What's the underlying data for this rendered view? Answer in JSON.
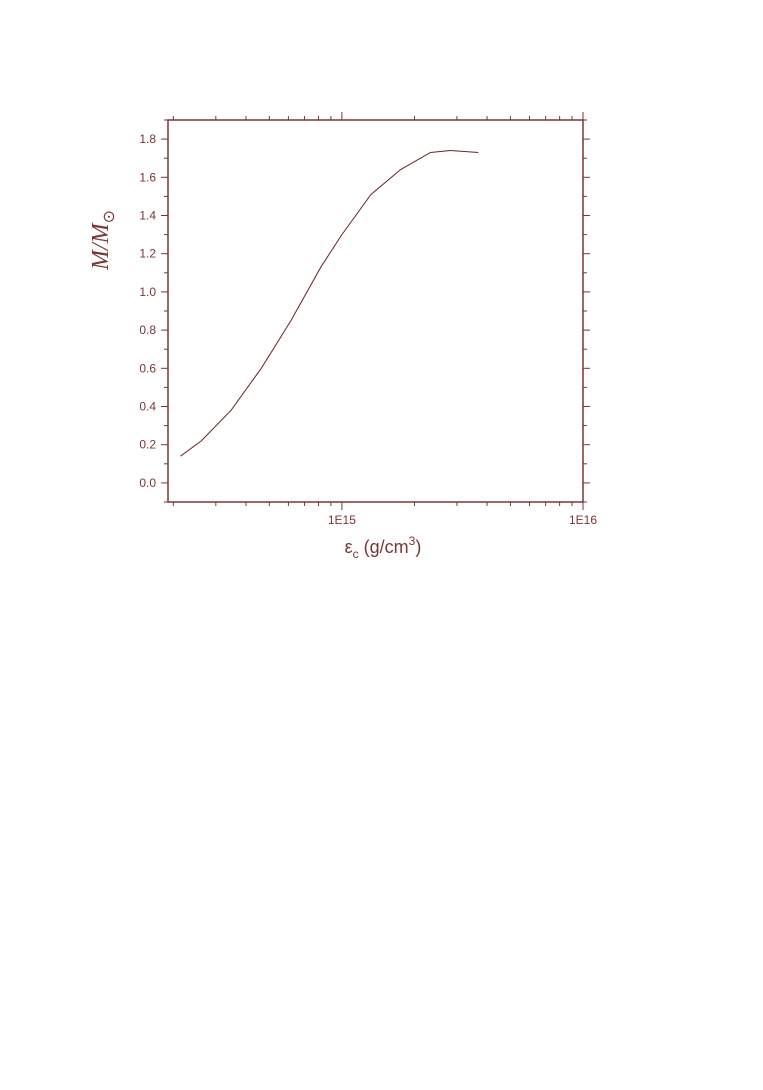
{
  "chart_data": {
    "type": "line",
    "log_x": true,
    "x_label": [
      "ε",
      "c",
      " (g/cm",
      "3",
      ")"
    ],
    "y_label": [
      "M/M",
      "⊙"
    ],
    "x": [
      214000000000000.0,
      261000000000000.0,
      347000000000000.0,
      463000000000000.0,
      615000000000000.0,
      818000000000000.0,
      1000000000000000.0,
      1320000000000000.0,
      1750000000000000.0,
      2330000000000000.0,
      2820000000000000.0,
      3680000000000000.0
    ],
    "series": [
      {
        "color": "#6b2424",
        "values": [
          0.14,
          0.22,
          0.38,
          0.6,
          0.85,
          1.13,
          1.3,
          1.51,
          1.64,
          1.73,
          1.74,
          1.73
        ]
      }
    ],
    "xlim": [
      190000000000000.0,
      1e+16
    ],
    "xticks": [
      {
        "value": 1000000000000000.0,
        "label": "1E15"
      },
      {
        "value": 1e+16,
        "label": "1E16"
      }
    ],
    "xminorticks": [
      200000000000000.0,
      300000000000000.0,
      400000000000000.0,
      500000000000000.0,
      600000000000000.0,
      700000000000000.0,
      800000000000000.0,
      900000000000000.0,
      2000000000000000.0,
      3000000000000000.0,
      4000000000000000.0,
      5000000000000000.0,
      6000000000000000.0,
      7000000000000000.0,
      8000000000000000.0,
      9000000000000000.0
    ],
    "ylim": [
      -0.1,
      1.9
    ],
    "yticks": [
      {
        "value": 0,
        "label": "0.0"
      },
      0.2,
      0.4,
      0.6,
      0.8,
      {
        "value": 1,
        "label": "1.0"
      },
      1.2,
      1.4,
      1.6,
      1.8
    ],
    "yminorticks": [
      -0.1,
      0.1,
      0.3,
      0.5,
      0.7,
      0.9,
      1.1,
      1.3,
      1.5,
      1.7,
      1.9
    ],
    "axis_color": "#7a3535"
  }
}
